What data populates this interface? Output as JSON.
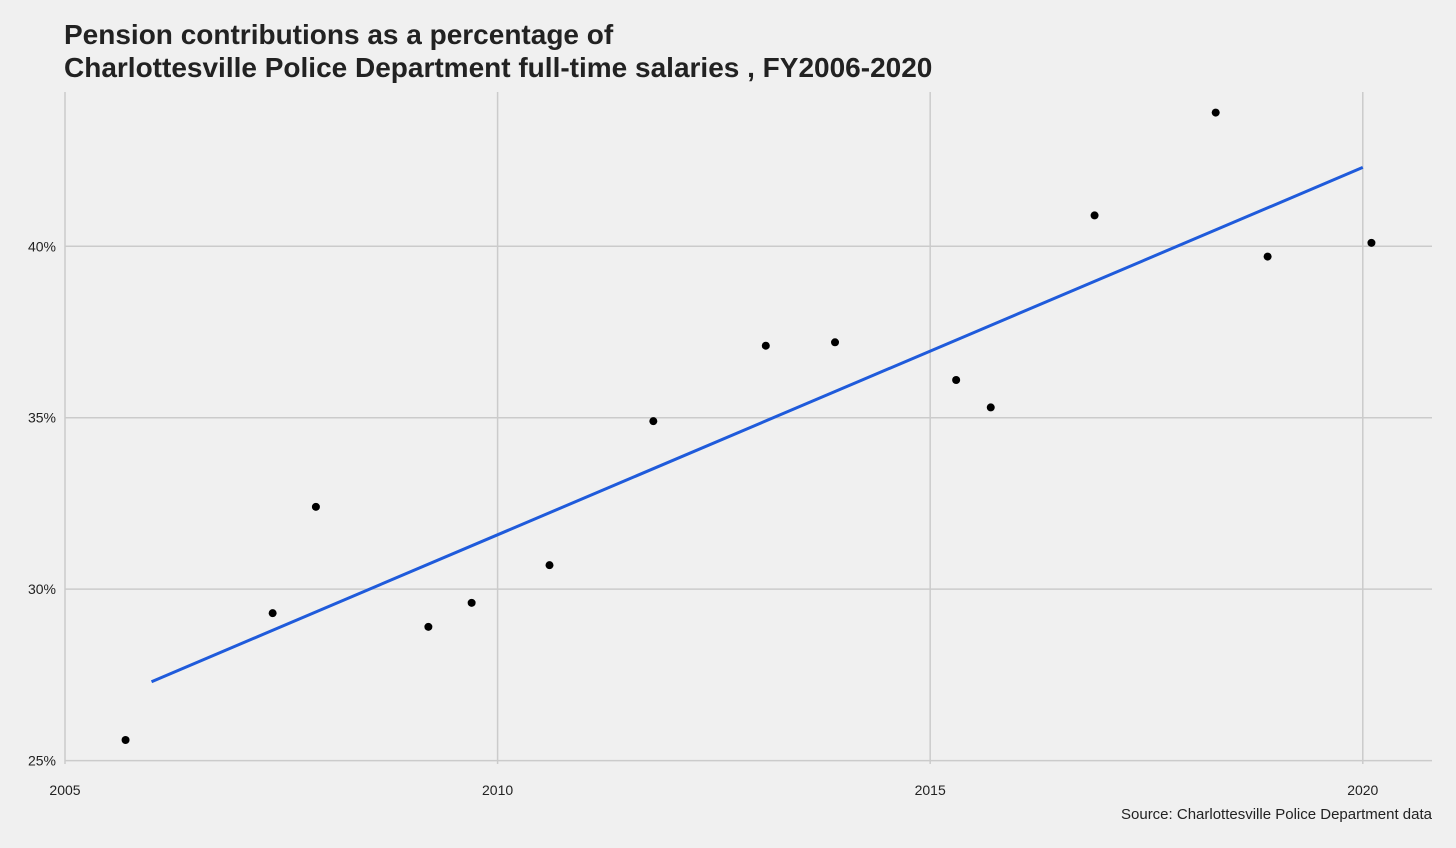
{
  "chart_data": {
    "type": "scatter",
    "title": "Pension contributions as a percentage of Charlottesville Police Department full-time salaries , FY2006-2020",
    "title_lines": [
      "Pension contributions as a percentage of",
      "Charlottesville Police Department full-time salaries , FY2006-2020"
    ],
    "caption": "Source: Charlottesville Police Department data",
    "xlabel": "",
    "ylabel": "",
    "xlim": [
      2005,
      2020.8
    ],
    "ylim": [
      24.9,
      44.5
    ],
    "x_ticks": [
      2005,
      2010,
      2015,
      2020
    ],
    "x_tick_labels": [
      "2005",
      "2010",
      "2015",
      "2020"
    ],
    "y_ticks": [
      25,
      30,
      35,
      40
    ],
    "y_tick_labels": [
      "25%",
      "30%",
      "35%",
      "40%"
    ],
    "grid": true,
    "legend": "none",
    "points": [
      {
        "x": 2005.7,
        "y": 25.6
      },
      {
        "x": 2007.4,
        "y": 29.3
      },
      {
        "x": 2007.9,
        "y": 32.4
      },
      {
        "x": 2009.2,
        "y": 28.9
      },
      {
        "x": 2009.7,
        "y": 29.6
      },
      {
        "x": 2010.6,
        "y": 30.7
      },
      {
        "x": 2011.8,
        "y": 34.9
      },
      {
        "x": 2013.1,
        "y": 37.1
      },
      {
        "x": 2013.9,
        "y": 37.2
      },
      {
        "x": 2015.3,
        "y": 36.1
      },
      {
        "x": 2015.7,
        "y": 35.3
      },
      {
        "x": 2016.9,
        "y": 40.9
      },
      {
        "x": 2018.3,
        "y": 43.9
      },
      {
        "x": 2018.9,
        "y": 39.7
      },
      {
        "x": 2020.1,
        "y": 40.1
      }
    ],
    "trend_line": {
      "x": [
        2006.0,
        2020.0
      ],
      "y": [
        27.3,
        42.3
      ]
    },
    "colors": {
      "background": "#f0f0f0",
      "grid": "#cbcbcb",
      "points": "#000000",
      "trend": "#1f5bdb",
      "text": "#222222"
    }
  }
}
